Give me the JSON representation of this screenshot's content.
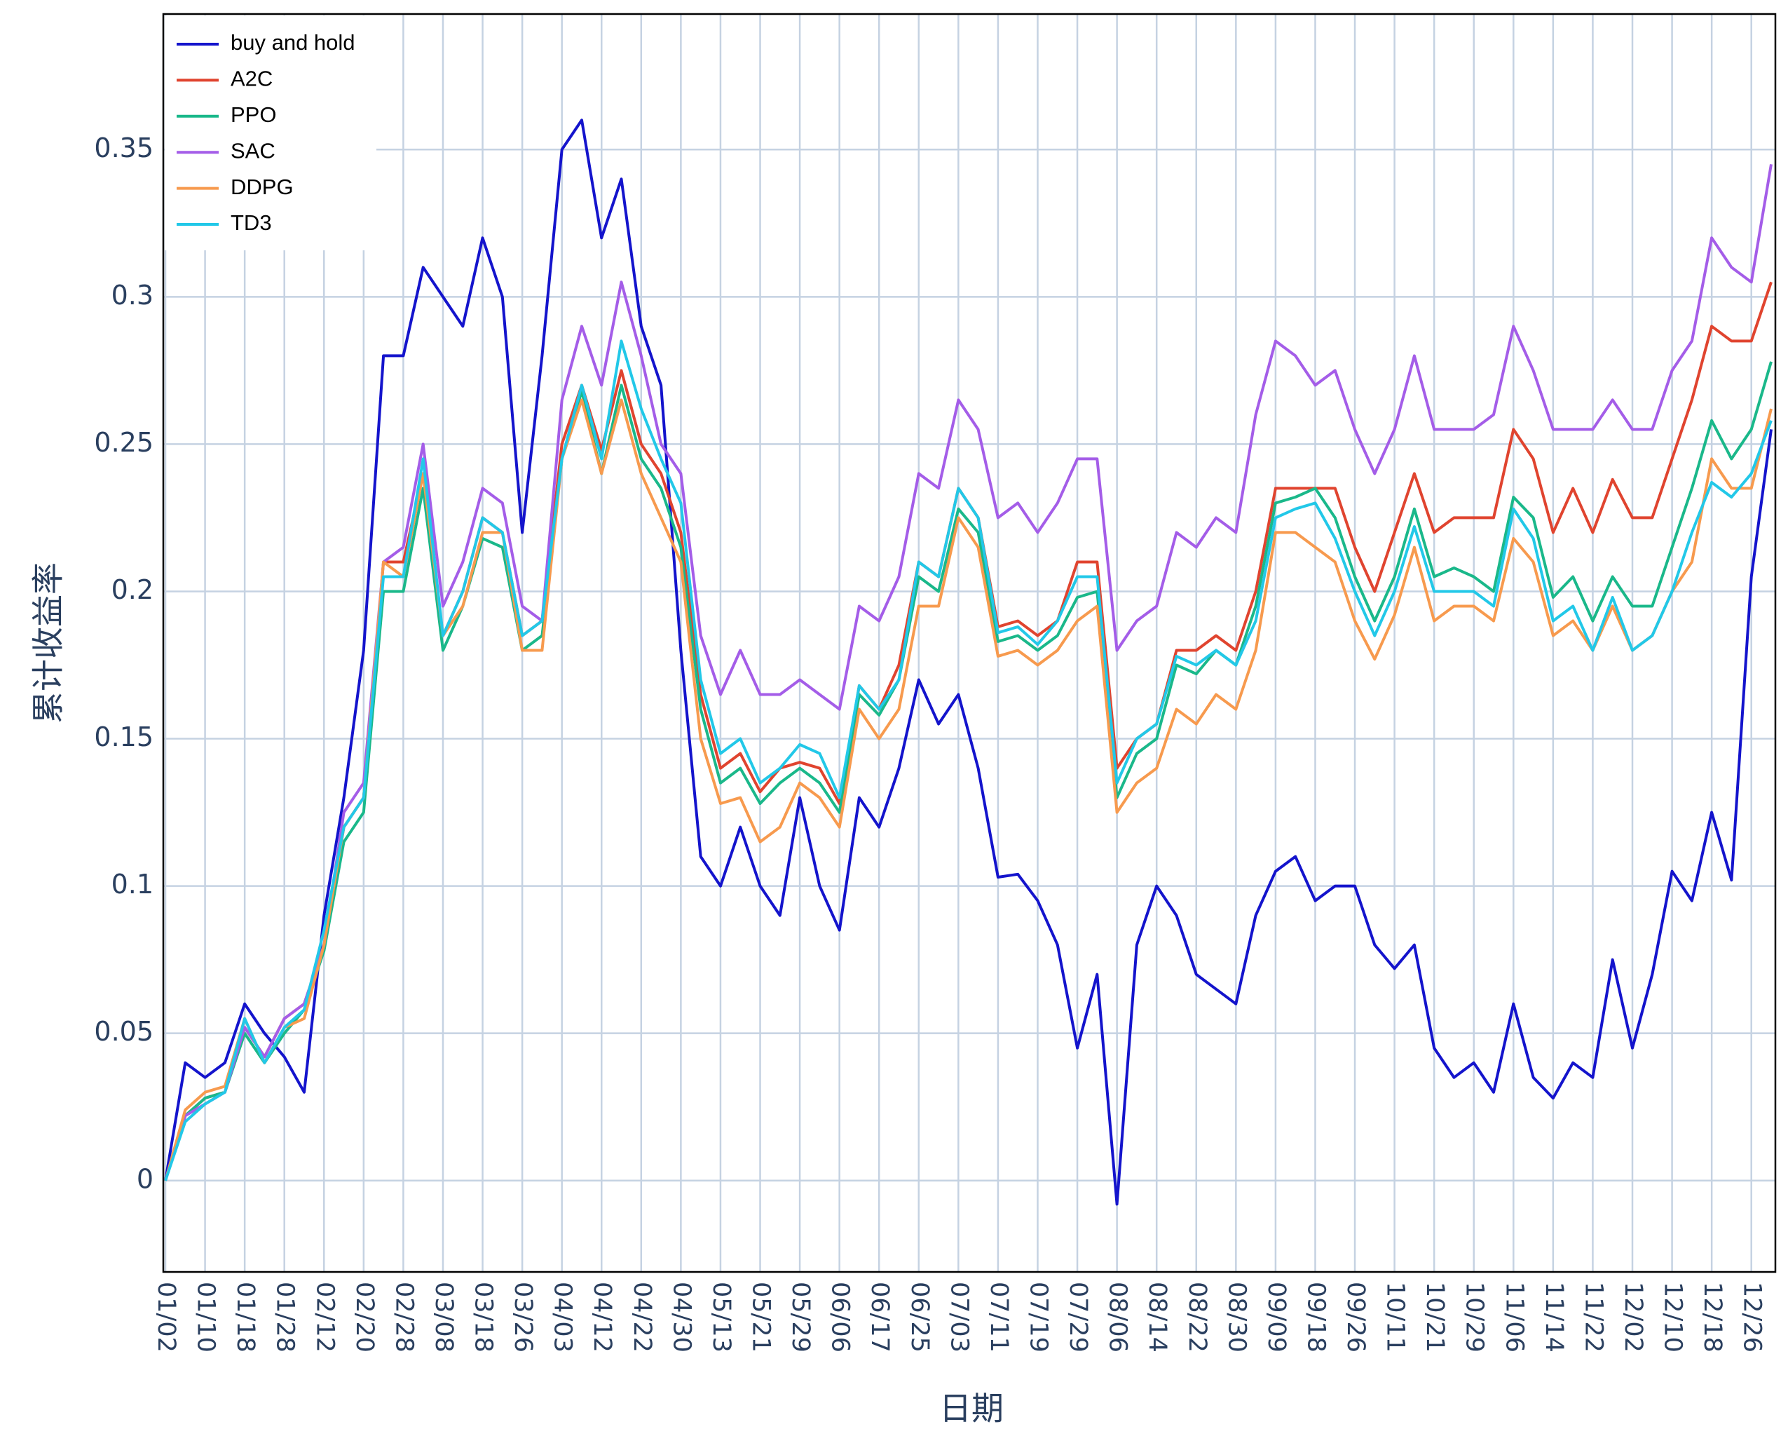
{
  "chart_data": {
    "type": "line",
    "xlabel": "日期",
    "ylabel": "累计收益率",
    "categories": [
      "01/02",
      null,
      "01/10",
      null,
      "01/18",
      null,
      "01/28",
      null,
      "02/12",
      null,
      "02/20",
      null,
      "02/28",
      null,
      "03/08",
      null,
      "03/18",
      null,
      "03/26",
      null,
      "04/03",
      null,
      "04/12",
      null,
      "04/22",
      null,
      "04/30",
      null,
      "05/13",
      null,
      "05/21",
      null,
      "05/29",
      null,
      "06/06",
      null,
      "06/17",
      null,
      "06/25",
      null,
      "07/03",
      null,
      "07/11",
      null,
      "07/19",
      null,
      "07/29",
      null,
      "08/06",
      null,
      "08/14",
      null,
      "08/22",
      null,
      "08/30",
      null,
      "09/09",
      null,
      "09/18",
      null,
      "09/26",
      null,
      "10/11",
      null,
      "10/21",
      null,
      "10/29",
      null,
      "11/06",
      null,
      "11/14",
      null,
      "11/22",
      null,
      "12/02",
      null,
      "12/10",
      null,
      "12/18",
      null,
      "12/26",
      null
    ],
    "ylim": [
      -0.031,
      0.396
    ],
    "yticks": [
      0,
      0.05,
      0.1,
      0.15,
      0.2,
      0.25,
      0.3,
      0.35
    ],
    "grid": true,
    "legend": "top left",
    "series": [
      {
        "name": "buy and hold",
        "color": "#1414cc",
        "values": [
          0,
          0.04,
          0.035,
          0.04,
          0.06,
          0.05,
          0.042,
          0.03,
          0.09,
          0.13,
          0.18,
          0.28,
          0.28,
          0.31,
          0.3,
          0.29,
          0.32,
          0.3,
          0.22,
          0.28,
          0.35,
          0.36,
          0.32,
          0.34,
          0.29,
          0.27,
          0.18,
          0.11,
          0.1,
          0.12,
          0.1,
          0.09,
          0.13,
          0.1,
          0.085,
          0.13,
          0.12,
          0.14,
          0.17,
          0.155,
          0.165,
          0.14,
          0.103,
          0.104,
          0.095,
          0.08,
          0.045,
          0.07,
          -0.008,
          0.08,
          0.1,
          0.09,
          0.07,
          0.065,
          0.06,
          0.09,
          0.105,
          0.11,
          0.095,
          0.1,
          0.1,
          0.08,
          0.072,
          0.08,
          0.045,
          0.035,
          0.04,
          0.03,
          0.06,
          0.035,
          0.028,
          0.04,
          0.035,
          0.075,
          0.045,
          0.07,
          0.105,
          0.095,
          0.125,
          0.102,
          0.205,
          0.255
        ]
      },
      {
        "name": "A2C",
        "color": "#e0442f",
        "values": [
          0,
          0.022,
          0.028,
          0.03,
          0.052,
          0.042,
          0.055,
          0.06,
          0.08,
          0.12,
          0.13,
          0.21,
          0.21,
          0.24,
          0.185,
          0.2,
          0.225,
          0.22,
          0.185,
          0.19,
          0.25,
          0.27,
          0.248,
          0.275,
          0.25,
          0.24,
          0.22,
          0.165,
          0.14,
          0.145,
          0.132,
          0.14,
          0.142,
          0.14,
          0.128,
          0.168,
          0.16,
          0.175,
          0.21,
          0.205,
          0.235,
          0.225,
          0.188,
          0.19,
          0.185,
          0.19,
          0.21,
          0.21,
          0.14,
          0.15,
          0.155,
          0.18,
          0.18,
          0.185,
          0.18,
          0.2,
          0.235,
          0.235,
          0.235,
          0.235,
          0.215,
          0.2,
          0.22,
          0.24,
          0.22,
          0.225,
          0.225,
          0.225,
          0.255,
          0.245,
          0.22,
          0.235,
          0.22,
          0.238,
          0.225,
          0.225,
          0.245,
          0.265,
          0.29,
          0.285,
          0.285,
          0.305
        ]
      },
      {
        "name": "PPO",
        "color": "#1ab88a",
        "values": [
          0,
          0.022,
          0.028,
          0.03,
          0.05,
          0.04,
          0.05,
          0.058,
          0.078,
          0.115,
          0.125,
          0.2,
          0.2,
          0.235,
          0.18,
          0.195,
          0.218,
          0.215,
          0.18,
          0.185,
          0.245,
          0.268,
          0.24,
          0.27,
          0.245,
          0.235,
          0.215,
          0.16,
          0.135,
          0.14,
          0.128,
          0.135,
          0.14,
          0.135,
          0.125,
          0.165,
          0.158,
          0.17,
          0.205,
          0.2,
          0.228,
          0.22,
          0.183,
          0.185,
          0.18,
          0.185,
          0.198,
          0.2,
          0.13,
          0.145,
          0.15,
          0.175,
          0.172,
          0.18,
          0.175,
          0.195,
          0.23,
          0.232,
          0.235,
          0.225,
          0.205,
          0.19,
          0.205,
          0.228,
          0.205,
          0.208,
          0.205,
          0.2,
          0.232,
          0.225,
          0.198,
          0.205,
          0.19,
          0.205,
          0.195,
          0.195,
          0.215,
          0.235,
          0.258,
          0.245,
          0.255,
          0.278
        ]
      },
      {
        "name": "SAC",
        "color": "#a45de8",
        "values": [
          0,
          0.022,
          0.026,
          0.03,
          0.052,
          0.042,
          0.055,
          0.06,
          0.08,
          0.125,
          0.135,
          0.21,
          0.215,
          0.25,
          0.195,
          0.21,
          0.235,
          0.23,
          0.195,
          0.19,
          0.265,
          0.29,
          0.27,
          0.305,
          0.28,
          0.25,
          0.24,
          0.185,
          0.165,
          0.18,
          0.165,
          0.165,
          0.17,
          0.165,
          0.16,
          0.195,
          0.19,
          0.205,
          0.24,
          0.235,
          0.265,
          0.255,
          0.225,
          0.23,
          0.22,
          0.23,
          0.245,
          0.245,
          0.18,
          0.19,
          0.195,
          0.22,
          0.215,
          0.225,
          0.22,
          0.26,
          0.285,
          0.28,
          0.27,
          0.275,
          0.255,
          0.24,
          0.255,
          0.28,
          0.255,
          0.255,
          0.255,
          0.26,
          0.29,
          0.275,
          0.255,
          0.255,
          0.255,
          0.265,
          0.255,
          0.255,
          0.275,
          0.285,
          0.32,
          0.31,
          0.305,
          0.345
        ]
      },
      {
        "name": "DDPG",
        "color": "#f79a4e",
        "values": [
          0,
          0.024,
          0.03,
          0.032,
          0.055,
          0.04,
          0.052,
          0.055,
          0.08,
          0.12,
          0.13,
          0.21,
          0.205,
          0.24,
          0.185,
          0.195,
          0.22,
          0.22,
          0.18,
          0.18,
          0.245,
          0.265,
          0.24,
          0.265,
          0.24,
          0.225,
          0.21,
          0.15,
          0.128,
          0.13,
          0.115,
          0.12,
          0.135,
          0.13,
          0.12,
          0.16,
          0.15,
          0.16,
          0.195,
          0.195,
          0.225,
          0.215,
          0.178,
          0.18,
          0.175,
          0.18,
          0.19,
          0.195,
          0.125,
          0.135,
          0.14,
          0.16,
          0.155,
          0.165,
          0.16,
          0.18,
          0.22,
          0.22,
          0.215,
          0.21,
          0.19,
          0.177,
          0.192,
          0.215,
          0.19,
          0.195,
          0.195,
          0.19,
          0.218,
          0.21,
          0.185,
          0.19,
          0.18,
          0.195,
          0.18,
          0.185,
          0.2,
          0.21,
          0.245,
          0.235,
          0.235,
          0.262
        ]
      },
      {
        "name": "TD3",
        "color": "#22c8e8",
        "values": [
          0,
          0.02,
          0.026,
          0.03,
          0.055,
          0.04,
          0.052,
          0.058,
          0.085,
          0.12,
          0.13,
          0.205,
          0.205,
          0.245,
          0.185,
          0.2,
          0.225,
          0.22,
          0.185,
          0.19,
          0.245,
          0.27,
          0.245,
          0.285,
          0.262,
          0.245,
          0.23,
          0.17,
          0.145,
          0.15,
          0.135,
          0.14,
          0.148,
          0.145,
          0.13,
          0.168,
          0.16,
          0.17,
          0.21,
          0.205,
          0.235,
          0.225,
          0.186,
          0.188,
          0.182,
          0.19,
          0.205,
          0.205,
          0.135,
          0.15,
          0.155,
          0.178,
          0.175,
          0.18,
          0.175,
          0.19,
          0.225,
          0.228,
          0.23,
          0.218,
          0.2,
          0.185,
          0.2,
          0.222,
          0.2,
          0.2,
          0.2,
          0.195,
          0.228,
          0.218,
          0.19,
          0.195,
          0.18,
          0.198,
          0.18,
          0.185,
          0.2,
          0.22,
          0.237,
          0.232,
          0.24,
          0.258
        ]
      }
    ]
  }
}
